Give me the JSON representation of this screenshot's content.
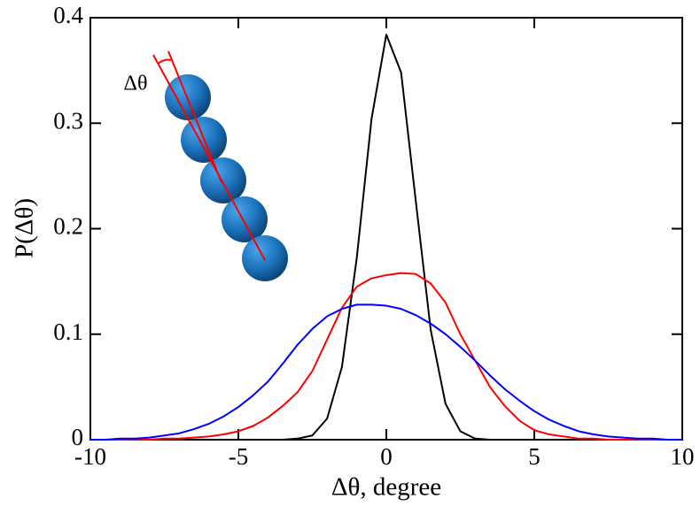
{
  "chart_data": {
    "type": "line",
    "xlabel": "Δθ, degree",
    "ylabel": "P(Δθ)",
    "annotation": "Δθ",
    "x": [
      -10,
      -9.5,
      -9,
      -8.5,
      -8,
      -7.5,
      -7,
      -6.5,
      -6,
      -5.5,
      -5,
      -4.5,
      -4,
      -3.5,
      -3,
      -2.5,
      -2,
      -1.5,
      -1,
      -0.5,
      0,
      0.5,
      1,
      1.5,
      2,
      2.5,
      3,
      3.5,
      4,
      4.5,
      5,
      5.5,
      6,
      6.5,
      7,
      7.5,
      8,
      8.5,
      9,
      9.5,
      10
    ],
    "series": [
      {
        "color": "#000000",
        "values": [
          0,
          0,
          0,
          0,
          0,
          0,
          0,
          0,
          0,
          0,
          0,
          0,
          0,
          0,
          0.001,
          0.004,
          0.02,
          0.069,
          0.172,
          0.304,
          0.384,
          0.348,
          0.225,
          0.104,
          0.034,
          0.008,
          0.001,
          0,
          0,
          0,
          0,
          0,
          0,
          0,
          0,
          0,
          0,
          0,
          0,
          0,
          0
        ]
      },
      {
        "color": "#ff0000",
        "values": [
          0,
          0,
          0,
          0,
          0,
          0.001,
          0.001,
          0.002,
          0.003,
          0.005,
          0.008,
          0.013,
          0.021,
          0.032,
          0.045,
          0.065,
          0.095,
          0.125,
          0.145,
          0.153,
          0.156,
          0.158,
          0.157,
          0.148,
          0.13,
          0.1,
          0.075,
          0.05,
          0.032,
          0.018,
          0.009,
          0.005,
          0.003,
          0.001,
          0.001,
          0,
          0,
          0,
          0,
          0,
          0
        ]
      },
      {
        "color": "#0000ff",
        "values": [
          0,
          0,
          0.001,
          0.001,
          0.002,
          0.004,
          0.006,
          0.01,
          0.015,
          0.022,
          0.031,
          0.042,
          0.055,
          0.072,
          0.09,
          0.105,
          0.117,
          0.124,
          0.128,
          0.128,
          0.127,
          0.124,
          0.118,
          0.11,
          0.1,
          0.088,
          0.075,
          0.061,
          0.048,
          0.037,
          0.027,
          0.019,
          0.013,
          0.008,
          0.005,
          0.003,
          0.002,
          0.001,
          0.001,
          0,
          0
        ]
      }
    ],
    "xlim": [
      -10,
      10
    ],
    "xticks": [
      -10,
      -5,
      0,
      5,
      10
    ],
    "ylim": [
      0,
      0.4
    ],
    "yticks": [
      0,
      0.1,
      0.2,
      0.3,
      0.4
    ]
  }
}
